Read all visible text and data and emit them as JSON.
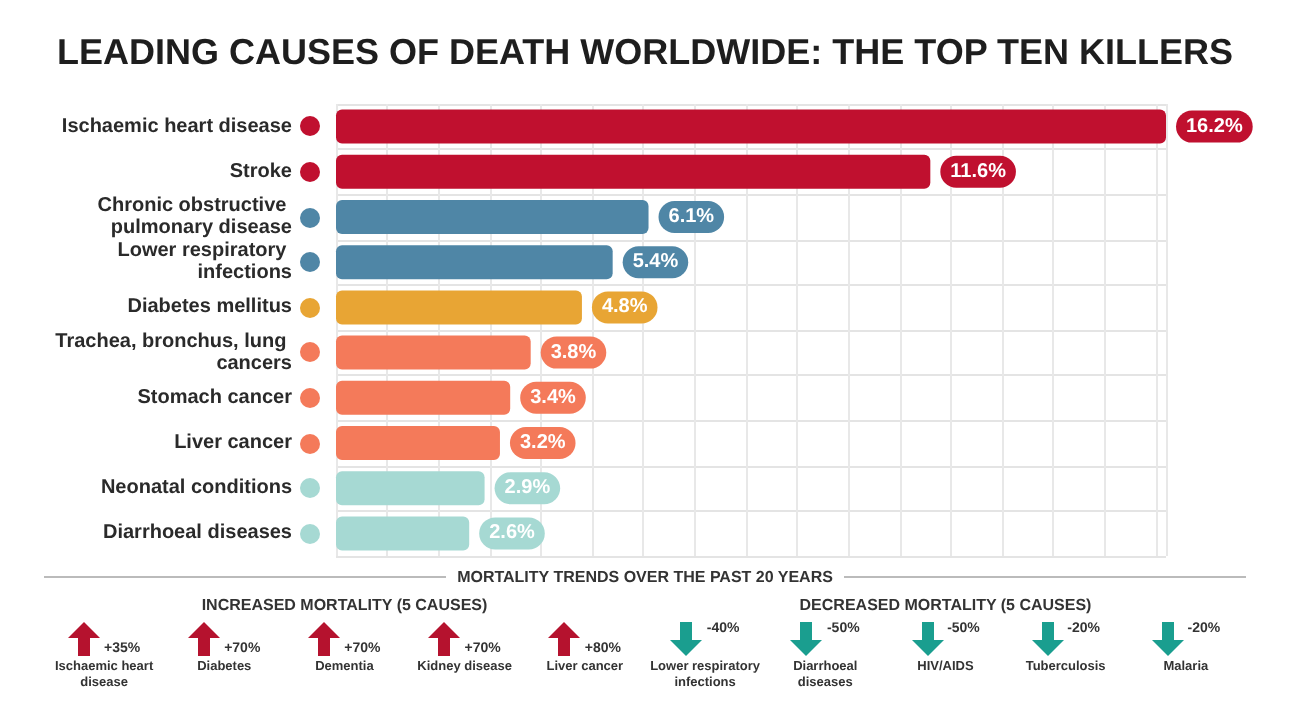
{
  "chart_data": [
    {
      "type": "bar",
      "orientation": "horizontal",
      "title": "LEADING CAUSES OF DEATH WORLDWIDE: THE TOP TEN KILLERS",
      "categories": [
        "Ischaemic heart disease",
        "Stroke",
        "Chronic obstructive pulmonary disease",
        "Lower respiratory infections",
        "Diabetes mellitus",
        "Trachea, bronchus, lung cancers",
        "Stomach cancer",
        "Liver cancer",
        "Neonatal conditions",
        "Diarrhoeal diseases"
      ],
      "values": [
        16.2,
        11.6,
        6.1,
        5.4,
        4.8,
        3.8,
        3.4,
        3.2,
        2.9,
        2.6
      ],
      "value_labels": [
        "16.2%",
        "11.6%",
        "6.1%",
        "5.4%",
        "4.8%",
        "3.8%",
        "3.4%",
        "3.2%",
        "2.9%",
        "2.6%"
      ],
      "colors": [
        "#c0102f",
        "#c0102f",
        "#4f86a6",
        "#4f86a6",
        "#e8a534",
        "#f47a5a",
        "#f47a5a",
        "#f47a5a",
        "#a6d9d3",
        "#a6d9d3"
      ],
      "grid": true,
      "tick_labels": "y"
    },
    {
      "type": "other",
      "title": "MORTALITY TRENDS OVER THE PAST 20 YEARS",
      "annotations": [
        "INCREASED MORTALITY (5 CAUSES)",
        "DECREASED MORTALITY (5 CAUSES)"
      ],
      "categories": [
        "Ischaemic heart disease",
        "Diabetes",
        "Dementia",
        "Kidney disease",
        "Liver cancer",
        "Lower respiratory infections",
        "Diarrhoeal diseases",
        "HIV/AIDS",
        "Tuberculosis",
        "Malaria"
      ],
      "values": [
        35,
        70,
        70,
        70,
        80,
        -40,
        -50,
        -50,
        -20,
        -20
      ],
      "value_labels": [
        "+35%",
        "+70%",
        "+70%",
        "+70%",
        "+80%",
        "-40%",
        "-50%",
        "-50%",
        "-20%",
        "-20%"
      ],
      "colors": [
        "#b5122e",
        "#b5122e",
        "#b5122e",
        "#b5122e",
        "#b5122e",
        "#1a9e8f",
        "#1a9e8f",
        "#1a9e8f",
        "#1a9e8f",
        "#1a9e8f"
      ]
    }
  ]
}
